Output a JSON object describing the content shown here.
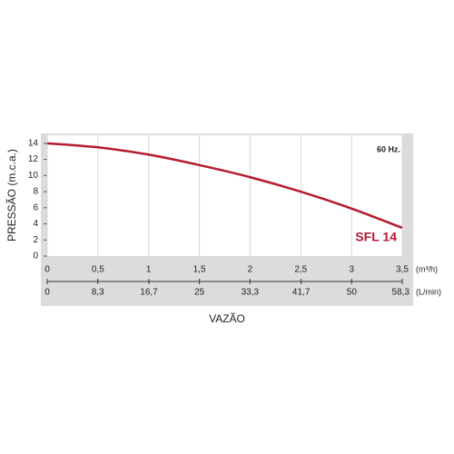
{
  "chart_data": {
    "type": "line",
    "y_label": "PRESSÃO (m.c.a.)",
    "x_label": "VAZÃO",
    "annotation": "60 Hz.",
    "x_unit": "(m³/h)",
    "x2_unit": "(L/min)",
    "x": [
      0,
      0.5,
      1,
      1.5,
      2,
      2.5,
      3,
      3.5
    ],
    "series": [
      {
        "name": "SFL 14",
        "color": "#b51a2f",
        "values": [
          14,
          13.5,
          12.6,
          11.3,
          9.8,
          8,
          5.9,
          3.5
        ]
      }
    ],
    "xlim": [
      0,
      3.5
    ],
    "xticks": [
      0,
      {
        "value": 0.5,
        "label": "0,5"
      },
      1,
      {
        "value": 1.5,
        "label": "1,5"
      },
      2,
      {
        "value": 2.5,
        "label": "2,5"
      },
      3,
      {
        "value": 3.5,
        "label": "3,5"
      }
    ],
    "x2lim": [
      0,
      58.3
    ],
    "x2ticks": [
      0,
      {
        "value": 8.3,
        "label": "8,3"
      },
      {
        "value": 16.7,
        "label": "16,7"
      },
      25,
      {
        "value": 33.3,
        "label": "33,3"
      },
      {
        "value": 41.7,
        "label": "41,7"
      },
      50,
      {
        "value": 58.3,
        "label": "58,3"
      }
    ],
    "ylim": [
      0,
      15
    ],
    "yticks": [
      0,
      2,
      4,
      6,
      8,
      10,
      12,
      14
    ],
    "grid": "x"
  }
}
